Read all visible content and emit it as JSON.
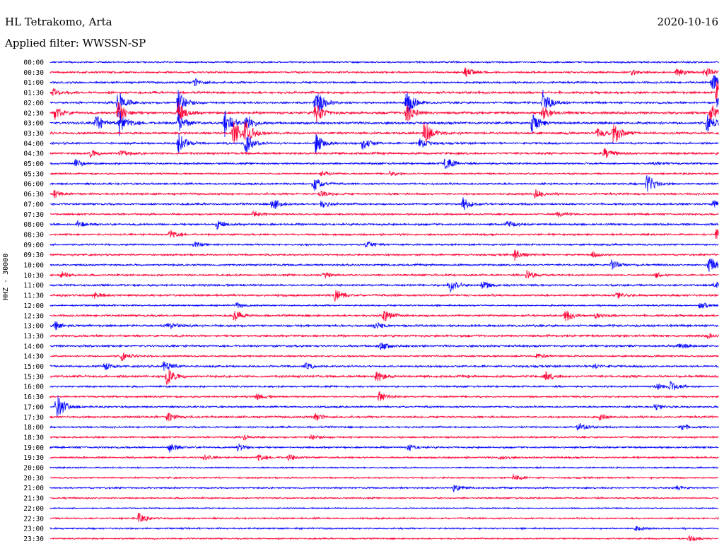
{
  "header": {
    "station": "HL Tetrakomo, Arta",
    "date": "2020-10-16",
    "filter": "Applied filter: WWSSN-SP"
  },
  "chart_data": {
    "type": "helicorder",
    "ylabel": "HHZ - 30000",
    "colors": {
      "blue": "#0000ff",
      "red": "#ff0033"
    },
    "rows": [
      {
        "time": "00:00",
        "color": "blue",
        "noise": 1.0,
        "events": []
      },
      {
        "time": "00:30",
        "color": "red",
        "noise": 1.2,
        "events": [
          [
            658,
            8
          ],
          [
            893,
            4
          ],
          [
            958,
            7
          ],
          [
            997,
            8
          ]
        ]
      },
      {
        "time": "01:00",
        "color": "blue",
        "noise": 1.3,
        "events": [
          [
            275,
            6
          ],
          [
            1007,
            14
          ]
        ]
      },
      {
        "time": "01:30",
        "color": "red",
        "noise": 1.5,
        "events": [
          [
            75,
            5
          ],
          [
            1014,
            16
          ]
        ]
      },
      {
        "time": "02:00",
        "color": "blue",
        "noise": 1.3,
        "events": [
          [
            167,
            20
          ],
          [
            252,
            20
          ],
          [
            446,
            24
          ],
          [
            575,
            20
          ],
          [
            768,
            18
          ],
          [
            1015,
            8
          ]
        ]
      },
      {
        "time": "02:30",
        "color": "red",
        "noise": 1.6,
        "events": [
          [
            78,
            10
          ],
          [
            167,
            18
          ],
          [
            252,
            16
          ],
          [
            446,
            16
          ],
          [
            575,
            14
          ],
          [
            768,
            10
          ],
          [
            1005,
            14
          ]
        ]
      },
      {
        "time": "03:00",
        "color": "blue",
        "noise": 1.6,
        "events": [
          [
            135,
            14
          ],
          [
            169,
            18
          ],
          [
            252,
            14
          ],
          [
            318,
            22
          ],
          [
            348,
            14
          ],
          [
            753,
            16
          ],
          [
            1000,
            14
          ]
        ]
      },
      {
        "time": "03:30",
        "color": "red",
        "noise": 1.5,
        "events": [
          [
            330,
            20
          ],
          [
            347,
            18
          ],
          [
            600,
            18
          ],
          [
            845,
            8
          ],
          [
            868,
            18
          ]
        ]
      },
      {
        "time": "04:00",
        "color": "blue",
        "noise": 1.3,
        "events": [
          [
            252,
            16
          ],
          [
            347,
            16
          ],
          [
            446,
            16
          ],
          [
            513,
            10
          ],
          [
            593,
            10
          ]
        ]
      },
      {
        "time": "04:30",
        "color": "red",
        "noise": 1.4,
        "events": [
          [
            128,
            6
          ],
          [
            170,
            6
          ],
          [
            855,
            8
          ]
        ]
      },
      {
        "time": "05:00",
        "color": "blue",
        "noise": 1.2,
        "events": [
          [
            107,
            5
          ],
          [
            630,
            10
          ],
          [
            925,
            4
          ]
        ]
      },
      {
        "time": "05:30",
        "color": "red",
        "noise": 1.0,
        "events": [
          [
            455,
            5
          ],
          [
            552,
            4
          ]
        ]
      },
      {
        "time": "06:00",
        "color": "blue",
        "noise": 1.2,
        "events": [
          [
            443,
            12
          ],
          [
            915,
            16
          ]
        ]
      },
      {
        "time": "06:30",
        "color": "red",
        "noise": 1.3,
        "events": [
          [
            77,
            5
          ],
          [
            453,
            5
          ],
          [
            757,
            7
          ]
        ]
      },
      {
        "time": "07:00",
        "color": "blue",
        "noise": 1.2,
        "events": [
          [
            385,
            10
          ],
          [
            455,
            6
          ],
          [
            655,
            10
          ],
          [
            1008,
            6
          ]
        ]
      },
      {
        "time": "07:30",
        "color": "red",
        "noise": 1.1,
        "events": [
          [
            357,
            5
          ],
          [
            788,
            4
          ]
        ]
      },
      {
        "time": "08:00",
        "color": "blue",
        "noise": 1.3,
        "events": [
          [
            110,
            5
          ],
          [
            307,
            6
          ],
          [
            718,
            4
          ]
        ]
      },
      {
        "time": "08:30",
        "color": "red",
        "noise": 1.2,
        "events": [
          [
            240,
            7
          ],
          [
            1013,
            8
          ]
        ]
      },
      {
        "time": "09:00",
        "color": "blue",
        "noise": 1.1,
        "events": [
          [
            275,
            5
          ],
          [
            518,
            6
          ]
        ]
      },
      {
        "time": "09:30",
        "color": "red",
        "noise": 1.1,
        "events": [
          [
            728,
            8
          ],
          [
            838,
            4
          ]
        ]
      },
      {
        "time": "10:00",
        "color": "blue",
        "noise": 1.2,
        "events": [
          [
            865,
            8
          ],
          [
            1003,
            14
          ]
        ]
      },
      {
        "time": "10:30",
        "color": "red",
        "noise": 1.2,
        "events": [
          [
            87,
            5
          ],
          [
            458,
            5
          ],
          [
            745,
            7
          ],
          [
            927,
            4
          ]
        ]
      },
      {
        "time": "11:00",
        "color": "blue",
        "noise": 1.3,
        "events": [
          [
            635,
            12
          ],
          [
            682,
            6
          ],
          [
            1009,
            5
          ]
        ]
      },
      {
        "time": "11:30",
        "color": "red",
        "noise": 1.3,
        "events": [
          [
            133,
            5
          ],
          [
            474,
            10
          ],
          [
            872,
            5
          ]
        ]
      },
      {
        "time": "12:00",
        "color": "blue",
        "noise": 1.0,
        "events": [
          [
            335,
            4
          ],
          [
            990,
            6
          ]
        ]
      },
      {
        "time": "12:30",
        "color": "red",
        "noise": 1.3,
        "events": [
          [
            331,
            8
          ],
          [
            542,
            10
          ],
          [
            800,
            8
          ],
          [
            843,
            4
          ]
        ]
      },
      {
        "time": "13:00",
        "color": "blue",
        "noise": 1.4,
        "events": [
          [
            78,
            6
          ],
          [
            238,
            7
          ],
          [
            530,
            6
          ]
        ]
      },
      {
        "time": "13:30",
        "color": "red",
        "noise": 1.4,
        "events": [
          [
            1000,
            3
          ]
        ]
      },
      {
        "time": "14:00",
        "color": "blue",
        "noise": 1.3,
        "events": [
          [
            538,
            7
          ],
          [
            960,
            4
          ]
        ]
      },
      {
        "time": "14:30",
        "color": "red",
        "noise": 1.1,
        "events": [
          [
            172,
            7
          ],
          [
            760,
            5
          ]
        ]
      },
      {
        "time": "15:00",
        "color": "blue",
        "noise": 1.3,
        "events": [
          [
            148,
            6
          ],
          [
            232,
            10
          ],
          [
            432,
            5
          ],
          [
            840,
            4
          ]
        ]
      },
      {
        "time": "15:30",
        "color": "red",
        "noise": 1.5,
        "events": [
          [
            236,
            14
          ],
          [
            532,
            8
          ],
          [
            772,
            6
          ]
        ]
      },
      {
        "time": "16:00",
        "color": "blue",
        "noise": 1.1,
        "events": [
          [
            928,
            5
          ],
          [
            948,
            8
          ]
        ]
      },
      {
        "time": "16:30",
        "color": "red",
        "noise": 1.1,
        "events": [
          [
            363,
            5
          ],
          [
            536,
            8
          ]
        ]
      },
      {
        "time": "17:00",
        "color": "blue",
        "noise": 1.1,
        "events": [
          [
            80,
            22
          ],
          [
            926,
            5
          ]
        ]
      },
      {
        "time": "17:30",
        "color": "red",
        "noise": 1.3,
        "events": [
          [
            237,
            7
          ],
          [
            446,
            6
          ],
          [
            848,
            4
          ]
        ]
      },
      {
        "time": "18:00",
        "color": "blue",
        "noise": 1.1,
        "events": [
          [
            818,
            7
          ],
          [
            962,
            5
          ]
        ]
      },
      {
        "time": "18:30",
        "color": "red",
        "noise": 1.1,
        "events": [
          [
            345,
            4
          ],
          [
            440,
            4
          ]
        ]
      },
      {
        "time": "19:00",
        "color": "blue",
        "noise": 1.1,
        "events": [
          [
            240,
            7
          ],
          [
            336,
            6
          ],
          [
            578,
            5
          ]
        ]
      },
      {
        "time": "19:30",
        "color": "red",
        "noise": 1.1,
        "events": [
          [
            288,
            4
          ],
          [
            365,
            5
          ],
          [
            408,
            5
          ],
          [
            707,
            3
          ]
        ]
      },
      {
        "time": "20:00",
        "color": "blue",
        "noise": 0.9,
        "events": []
      },
      {
        "time": "20:30",
        "color": "red",
        "noise": 1.0,
        "events": [
          [
            726,
            5
          ]
        ]
      },
      {
        "time": "21:00",
        "color": "blue",
        "noise": 1.0,
        "events": [
          [
            642,
            6
          ],
          [
            958,
            3
          ]
        ]
      },
      {
        "time": "21:30",
        "color": "red",
        "noise": 0.9,
        "events": []
      },
      {
        "time": "22:00",
        "color": "blue",
        "noise": 0.7,
        "events": []
      },
      {
        "time": "22:30",
        "color": "red",
        "noise": 1.0,
        "events": [
          [
            196,
            7
          ]
        ]
      },
      {
        "time": "23:00",
        "color": "blue",
        "noise": 1.0,
        "events": [
          [
            900,
            3
          ]
        ]
      },
      {
        "time": "23:30",
        "color": "red",
        "noise": 0.9,
        "events": [
          [
            975,
            5
          ]
        ]
      }
    ]
  }
}
